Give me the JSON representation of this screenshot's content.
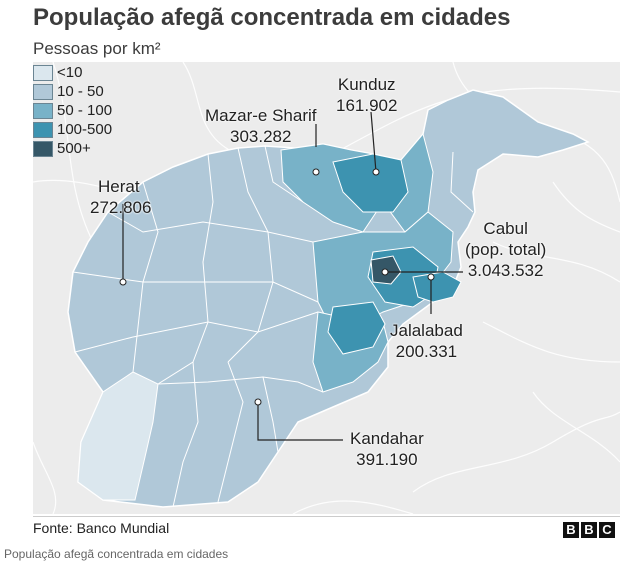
{
  "title": "População afegã concentrada em cidades",
  "legend": {
    "title": "Pessoas por km²",
    "items": [
      {
        "label": "<10",
        "color": "#dbe7ee"
      },
      {
        "label": "10 - 50",
        "color": "#b0c8d8"
      },
      {
        "label": "50 - 100",
        "color": "#78b2c8"
      },
      {
        "label": "100-500",
        "color": "#3d93b0"
      },
      {
        "label": "500+",
        "color": "#355767"
      }
    ]
  },
  "cities": [
    {
      "name": "Herat",
      "value": "272.806"
    },
    {
      "name": "Mazar-e Sharif",
      "value": "303.282"
    },
    {
      "name": "Kunduz",
      "value": "161.902"
    },
    {
      "name": "Cabul",
      "name2": "(pop. total)",
      "value": "3.043.532"
    },
    {
      "name": "Jalalabad",
      "value": "200.331"
    },
    {
      "name": "Kandahar",
      "value": "391.190"
    }
  ],
  "source": "Fonte: Banco Mundial",
  "brand": [
    "B",
    "B",
    "C"
  ],
  "caption": "População afegã concentrada em cidades"
}
